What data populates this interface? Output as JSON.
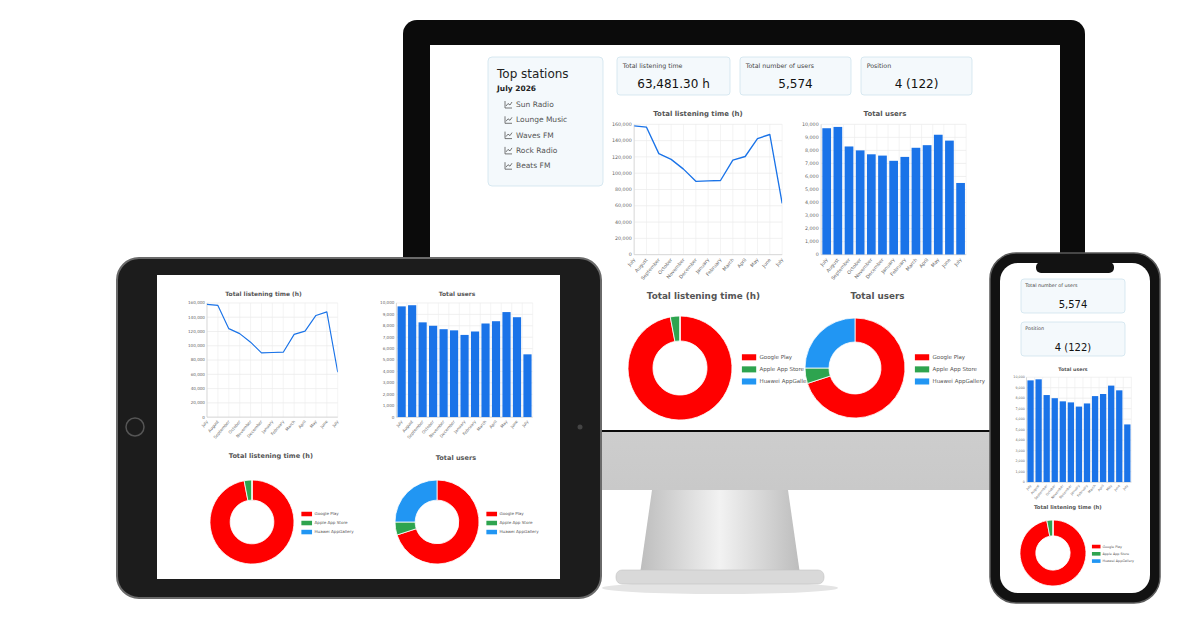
{
  "top_stations": {
    "title": "Top stations",
    "period": "July 2026",
    "items": [
      "Sun Radio",
      "Lounge Music",
      "Waves FM",
      "Rock Radio",
      "Beats FM"
    ]
  },
  "kpis": [
    {
      "label": "Total listening time",
      "value": "63,481.30 h"
    },
    {
      "label": "Total number of users",
      "value": "5,574"
    },
    {
      "label": "Position",
      "value": "4 (122)"
    }
  ],
  "chart_data": [
    {
      "type": "line",
      "title": "Total listening time (h)",
      "categories": [
        "July",
        "August",
        "September",
        "October",
        "November",
        "December",
        "January",
        "February",
        "March",
        "April",
        "May",
        "June",
        "July"
      ],
      "values": [
        158000,
        156500,
        124000,
        117000,
        105000,
        90000,
        90500,
        91000,
        116000,
        120500,
        142500,
        147500,
        63000
      ],
      "color": "#1a73e8",
      "ylim": [
        0,
        160000
      ],
      "yticks": [
        0,
        {
          "value": 20000,
          "label": "20,000"
        },
        {
          "value": 40000,
          "label": "40,000"
        },
        {
          "value": 60000,
          "label": "60,000"
        },
        {
          "value": 80000,
          "label": "80,000"
        },
        {
          "value": 100000,
          "label": "100,000"
        },
        {
          "value": 120000,
          "label": "120,000"
        },
        {
          "value": 140000,
          "label": "140,000"
        },
        {
          "value": 160000,
          "label": "160,000"
        }
      ],
      "grid": true
    },
    {
      "type": "bar",
      "title": "Total users",
      "categories": [
        "July",
        "August",
        "September",
        "October",
        "November",
        "December",
        "January",
        "February",
        "March",
        "April",
        "May",
        "June",
        "July"
      ],
      "values": [
        9700,
        9800,
        8300,
        8000,
        7700,
        7600,
        7200,
        7500,
        8200,
        8400,
        9200,
        8750,
        5500
      ],
      "color": "#1a73e8",
      "ylim": [
        0,
        10000
      ],
      "yticks": [
        0,
        {
          "value": 1000,
          "label": "1,000"
        },
        {
          "value": 2000,
          "label": "2,000"
        },
        {
          "value": 3000,
          "label": "3,000"
        },
        {
          "value": 4000,
          "label": "4,000"
        },
        {
          "value": 5000,
          "label": "5,000"
        },
        {
          "value": 6000,
          "label": "6,000"
        },
        {
          "value": 7000,
          "label": "7,000"
        },
        {
          "value": 8000,
          "label": "8,000"
        },
        {
          "value": 9000,
          "label": "9,000"
        },
        {
          "value": 10000,
          "label": "10,000"
        }
      ],
      "grid": true
    },
    {
      "type": "doughnut",
      "title": "Total listening time (h)",
      "categories": [
        "Google Play",
        "Apple App Store",
        "Huawei AppGallery"
      ],
      "values": [
        97,
        3,
        0
      ],
      "colors": [
        "#ff0000",
        "#2ea44f",
        "#2196f3"
      ],
      "legend": "right"
    },
    {
      "type": "doughnut",
      "title": "Total users",
      "categories": [
        "Google Play",
        "Apple App Store",
        "Huawei AppGallery"
      ],
      "values": [
        70,
        5,
        25
      ],
      "colors": [
        "#ff0000",
        "#2ea44f",
        "#2196f3"
      ],
      "legend": "right"
    }
  ]
}
